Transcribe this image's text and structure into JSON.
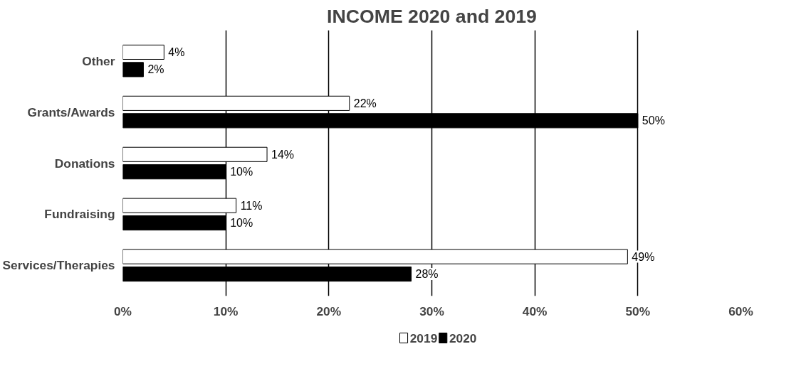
{
  "chart_data": {
    "type": "bar",
    "orientation": "horizontal",
    "title": "INCOME 2020 and 2019",
    "categories": [
      "Other",
      "Grants/Awards",
      "Donations",
      "Fundraising",
      "Services/Therapies"
    ],
    "series": [
      {
        "name": "2019",
        "color": "#ffffff",
        "values": [
          4,
          22,
          14,
          11,
          49
        ],
        "value_labels": [
          "4%",
          "22%",
          "14%",
          "11%",
          "49%"
        ]
      },
      {
        "name": "2020",
        "color": "#000000",
        "values": [
          2,
          50,
          10,
          10,
          28
        ],
        "value_labels": [
          "2%",
          "50%",
          "10%",
          "10%",
          "28%"
        ]
      }
    ],
    "xlim": [
      0,
      60
    ],
    "xticks": [
      {
        "value": 0,
        "label": "0%"
      },
      {
        "value": 10,
        "label": "10%"
      },
      {
        "value": 20,
        "label": "20%"
      },
      {
        "value": 30,
        "label": "30%"
      },
      {
        "value": 40,
        "label": "40%"
      },
      {
        "value": 50,
        "label": "50%"
      },
      {
        "value": 60,
        "label": "60%"
      }
    ],
    "grid": "x",
    "legend": "bottom"
  }
}
